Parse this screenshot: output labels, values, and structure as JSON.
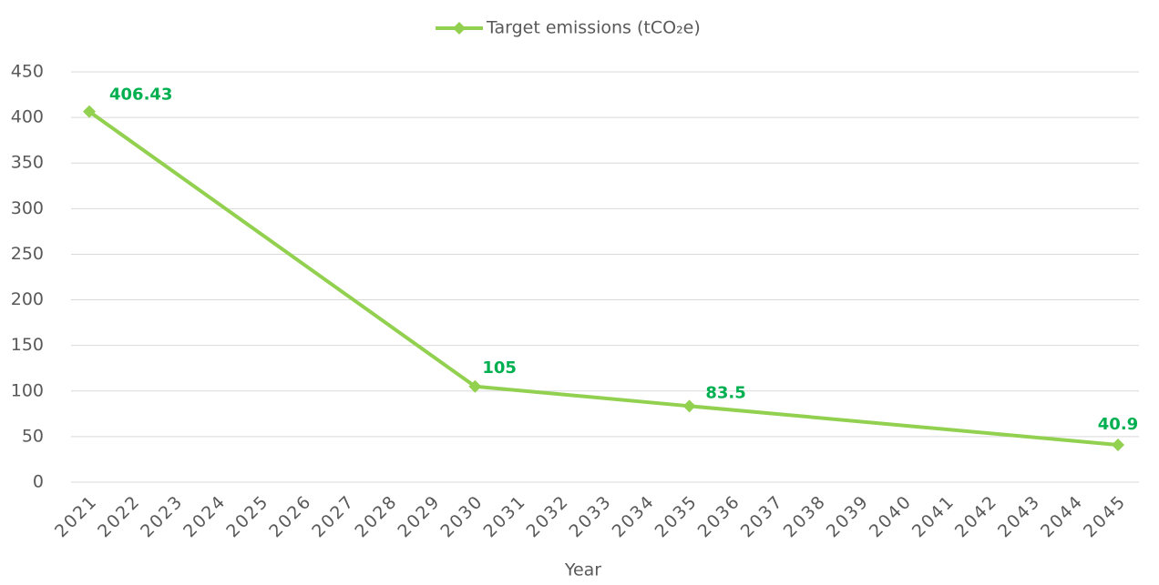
{
  "chart_data": {
    "type": "line",
    "legend": "top",
    "x_label": "Year",
    "x": [
      2021,
      2030,
      2035,
      2045
    ],
    "series": [
      {
        "name": "Target emissions (tCO₂e)",
        "color": "#92d050",
        "values": [
          406.43,
          105,
          83.5,
          40.9
        ]
      }
    ],
    "xlim": [
      2021,
      2045
    ],
    "xticks": [
      2021,
      2022,
      2023,
      2024,
      2025,
      2026,
      2027,
      2028,
      2029,
      2030,
      2031,
      2032,
      2033,
      2034,
      2035,
      2036,
      2037,
      2038,
      2039,
      2040,
      2041,
      2042,
      2043,
      2044,
      2045
    ],
    "ylim": [
      0,
      450
    ],
    "yticks": [
      0,
      50,
      100,
      150,
      200,
      250,
      300,
      350,
      400,
      450
    ],
    "grid": true
  }
}
